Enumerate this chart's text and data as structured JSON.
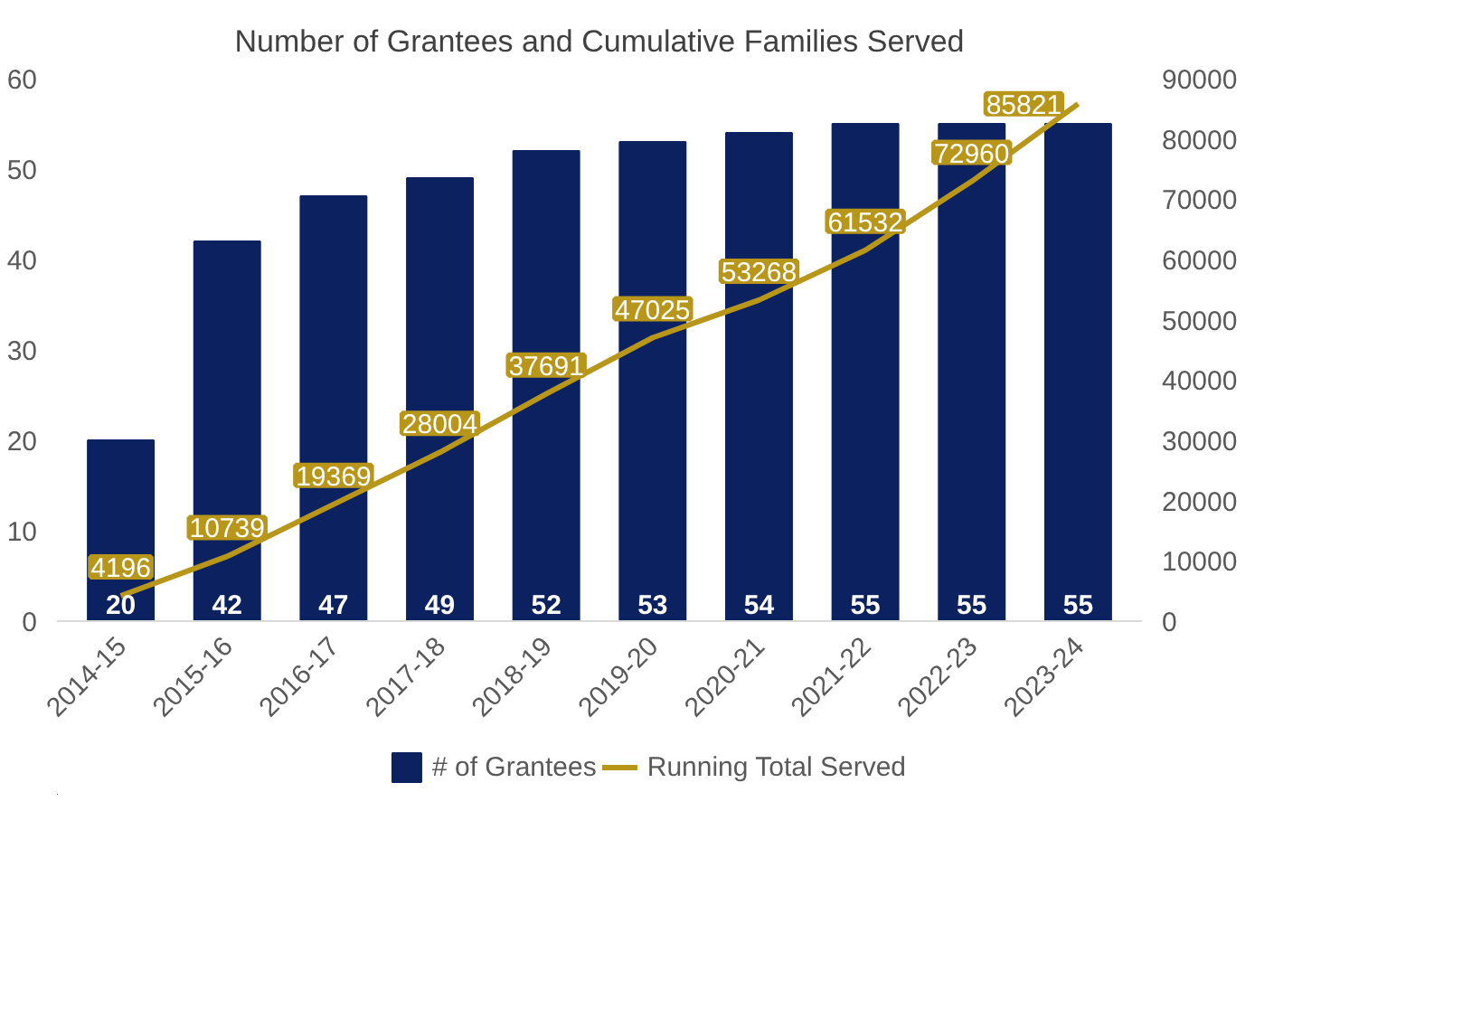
{
  "chart_data": {
    "type": "bar",
    "title": "Number of Grantees and Cumulative Families Served",
    "categories": [
      "2014-15",
      "2015-16",
      "2016-17",
      "2017-18",
      "2018-19",
      "2019-20",
      "2020-21",
      "2021-22",
      "2022-23",
      "2023-24"
    ],
    "series": [
      {
        "name": "# of Grantees",
        "color": "#0b2160",
        "values": [
          20,
          42,
          47,
          49,
          52,
          53,
          54,
          55,
          55,
          55
        ]
      },
      {
        "name": "Running Total Served",
        "type": "line",
        "axis": "y2",
        "color": "#b8961a",
        "values": [
          4196,
          10739,
          19369,
          28004,
          37691,
          47025,
          53268,
          61532,
          72960,
          85821
        ]
      }
    ],
    "ylim": [
      0,
      60
    ],
    "yticks": [
      0,
      10,
      20,
      30,
      40,
      50,
      60
    ],
    "y2lim": [
      0,
      90000
    ],
    "y2ticks": [
      0,
      10000,
      20000,
      30000,
      40000,
      50000,
      60000,
      70000,
      80000,
      90000
    ],
    "data_labels": true,
    "legend": "bottom"
  }
}
